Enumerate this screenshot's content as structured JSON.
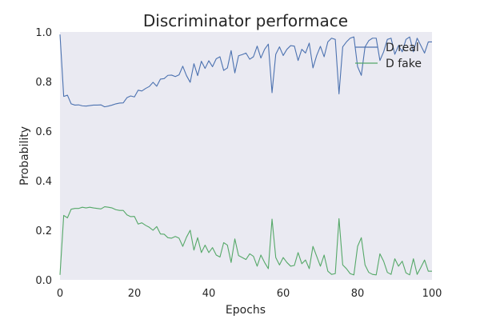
{
  "chart_data": {
    "type": "line",
    "title": "Discriminator performace",
    "xlabel": "Epochs",
    "ylabel": "Probability",
    "xlim": [
      0,
      100
    ],
    "ylim": [
      0.0,
      1.0
    ],
    "xticks": [
      0,
      20,
      40,
      60,
      80,
      100
    ],
    "yticks": [
      0.0,
      0.2,
      0.4,
      0.6,
      0.8,
      1.0
    ],
    "xtick_labels": [
      "0",
      "20",
      "40",
      "60",
      "80",
      "100"
    ],
    "ytick_labels": [
      "0.0",
      "0.2",
      "0.4",
      "0.6",
      "0.8",
      "1.0"
    ],
    "grid": false,
    "legend_position": "top-right",
    "x": [
      0,
      1,
      2,
      3,
      4,
      5,
      6,
      7,
      8,
      9,
      10,
      11,
      12,
      13,
      14,
      15,
      16,
      17,
      18,
      19,
      20,
      21,
      22,
      23,
      24,
      25,
      26,
      27,
      28,
      29,
      30,
      31,
      32,
      33,
      34,
      35,
      36,
      37,
      38,
      39,
      40,
      41,
      42,
      43,
      44,
      45,
      46,
      47,
      48,
      49,
      50,
      51,
      52,
      53,
      54,
      55,
      56,
      57,
      58,
      59,
      60,
      61,
      62,
      63,
      64,
      65,
      66,
      67,
      68,
      69,
      70,
      71,
      72,
      73,
      74,
      75,
      76,
      77,
      78,
      79,
      80,
      81,
      82,
      83,
      84,
      85,
      86,
      87,
      88,
      89,
      90,
      91,
      92,
      93,
      94,
      95,
      96,
      97,
      98,
      99,
      100
    ],
    "series": [
      {
        "name": "D real",
        "color": "#4c72b0",
        "values": [
          0.99,
          0.74,
          0.745,
          0.71,
          0.705,
          0.706,
          0.702,
          0.701,
          0.703,
          0.705,
          0.705,
          0.706,
          0.698,
          0.701,
          0.705,
          0.71,
          0.713,
          0.714,
          0.735,
          0.742,
          0.738,
          0.765,
          0.762,
          0.772,
          0.78,
          0.797,
          0.781,
          0.81,
          0.812,
          0.825,
          0.826,
          0.82,
          0.827,
          0.862,
          0.824,
          0.797,
          0.872,
          0.824,
          0.882,
          0.853,
          0.884,
          0.86,
          0.892,
          0.9,
          0.845,
          0.855,
          0.925,
          0.835,
          0.904,
          0.909,
          0.915,
          0.89,
          0.9,
          0.943,
          0.895,
          0.93,
          0.951,
          0.755,
          0.91,
          0.94,
          0.905,
          0.93,
          0.945,
          0.943,
          0.885,
          0.93,
          0.915,
          0.955,
          0.855,
          0.905,
          0.942,
          0.9,
          0.96,
          0.975,
          0.97,
          0.75,
          0.94,
          0.96,
          0.975,
          0.98,
          0.86,
          0.825,
          0.94,
          0.965,
          0.975,
          0.975,
          0.885,
          0.92,
          0.97,
          0.975,
          0.91,
          0.945,
          0.92,
          0.97,
          0.98,
          0.92,
          0.975,
          0.945,
          0.915,
          0.96,
          0.96
        ]
      },
      {
        "name": "D fake",
        "color": "#55a868",
        "values": [
          0.02,
          0.26,
          0.25,
          0.285,
          0.288,
          0.288,
          0.293,
          0.29,
          0.293,
          0.29,
          0.288,
          0.286,
          0.295,
          0.293,
          0.29,
          0.283,
          0.28,
          0.28,
          0.262,
          0.255,
          0.256,
          0.225,
          0.23,
          0.22,
          0.212,
          0.2,
          0.215,
          0.185,
          0.184,
          0.17,
          0.168,
          0.175,
          0.168,
          0.135,
          0.172,
          0.2,
          0.12,
          0.17,
          0.11,
          0.14,
          0.11,
          0.13,
          0.1,
          0.092,
          0.15,
          0.14,
          0.07,
          0.165,
          0.098,
          0.09,
          0.082,
          0.105,
          0.095,
          0.055,
          0.1,
          0.07,
          0.045,
          0.245,
          0.09,
          0.06,
          0.09,
          0.07,
          0.055,
          0.058,
          0.11,
          0.065,
          0.08,
          0.045,
          0.135,
          0.095,
          0.055,
          0.1,
          0.035,
          0.022,
          0.025,
          0.247,
          0.06,
          0.045,
          0.025,
          0.02,
          0.135,
          0.17,
          0.06,
          0.03,
          0.022,
          0.02,
          0.105,
          0.075,
          0.03,
          0.022,
          0.085,
          0.055,
          0.075,
          0.028,
          0.02,
          0.085,
          0.022,
          0.05,
          0.08,
          0.035,
          0.035
        ]
      }
    ]
  }
}
